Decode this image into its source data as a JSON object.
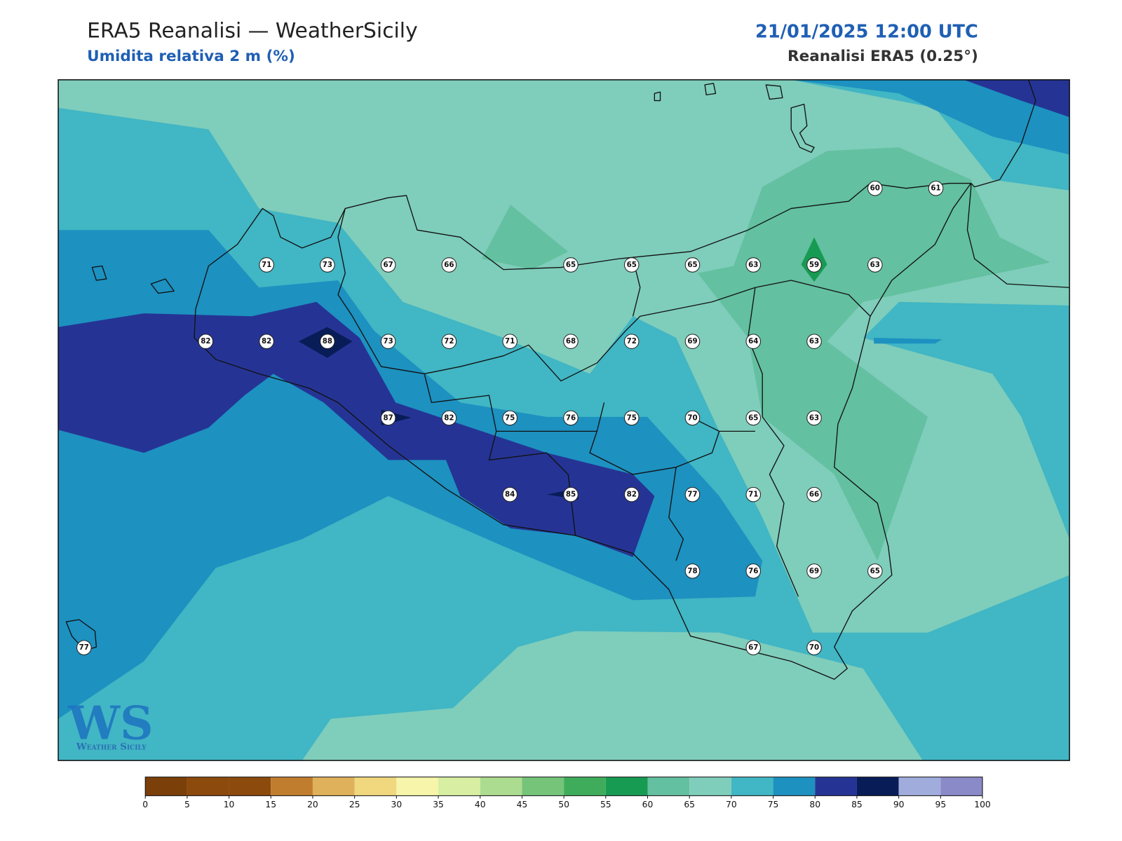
{
  "header": {
    "title": "ERA5 Reanalisi — WeatherSicily",
    "subtitle": "Umidita relativa 2 m (%)",
    "date": "21/01/2025 12:00 UTC",
    "source": "Reanalisi ERA5 (0.25°)"
  },
  "stations": [
    60,
    61,
    71,
    73,
    67,
    66,
    65,
    65,
    65,
    63,
    59,
    63,
    82,
    82,
    88,
    73,
    72,
    71,
    68,
    72,
    69,
    64,
    63,
    87,
    82,
    75,
    76,
    75,
    70,
    65,
    63,
    84,
    85,
    82,
    77,
    71,
    66,
    78,
    76,
    69,
    65,
    77,
    67,
    70
  ],
  "colorbar": {
    "ticks": [
      0,
      5,
      10,
      15,
      20,
      25,
      30,
      35,
      40,
      45,
      50,
      55,
      60,
      65,
      70,
      75,
      80,
      85,
      90,
      95,
      100
    ],
    "colors": [
      "#7b3f09",
      "#8c4a0c",
      "#8c4a0c",
      "#c17d2e",
      "#dfb15a",
      "#f1d77e",
      "#f6f5a9",
      "#d7eea3",
      "#acdc90",
      "#75c47a",
      "#3fac5c",
      "#179b52",
      "#63c0a0",
      "#7fcdbb",
      "#41b6c4",
      "#1d91c0",
      "#253494",
      "#081d58",
      "#a0acdc",
      "#8b8ac8"
    ]
  },
  "logo": {
    "mark": "WS",
    "text": "Weather Sicily"
  }
}
